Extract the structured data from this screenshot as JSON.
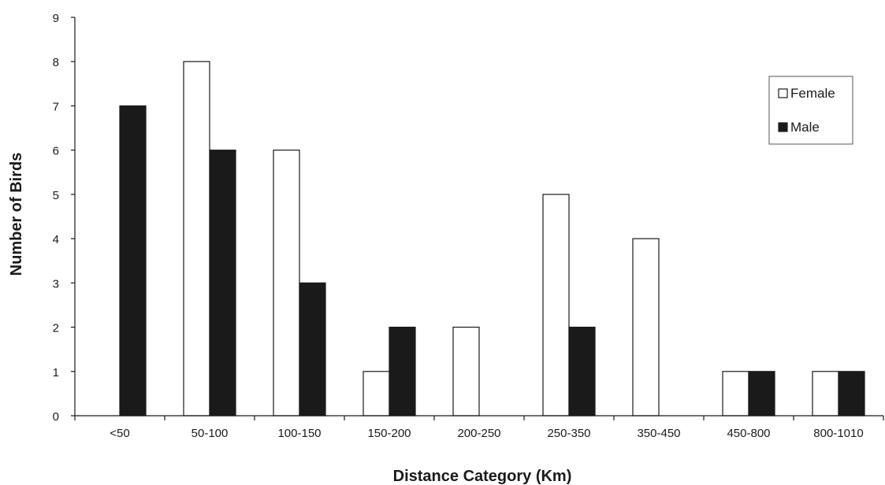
{
  "chart_data": {
    "type": "bar",
    "xlabel": "Distance Category (Km)",
    "ylabel": "Number of Birds",
    "categories": [
      "<50",
      "50-100",
      "100-150",
      "150-200",
      "200-250",
      "250-350",
      "350-450",
      "450-800",
      "800-1010"
    ],
    "series": [
      {
        "name": "Female",
        "values": [
          0,
          8,
          6,
          1,
          2,
          5,
          4,
          1,
          1
        ],
        "color": "#ffffff"
      },
      {
        "name": "Male",
        "values": [
          7,
          6,
          3,
          2,
          0,
          2,
          0,
          1,
          1
        ],
        "color": "#1a1a1a"
      }
    ],
    "ylim": [
      0,
      9
    ],
    "yticks": [
      0,
      1,
      2,
      3,
      4,
      5,
      6,
      7,
      8,
      9
    ],
    "grid": false,
    "legend_position": "top-right"
  }
}
